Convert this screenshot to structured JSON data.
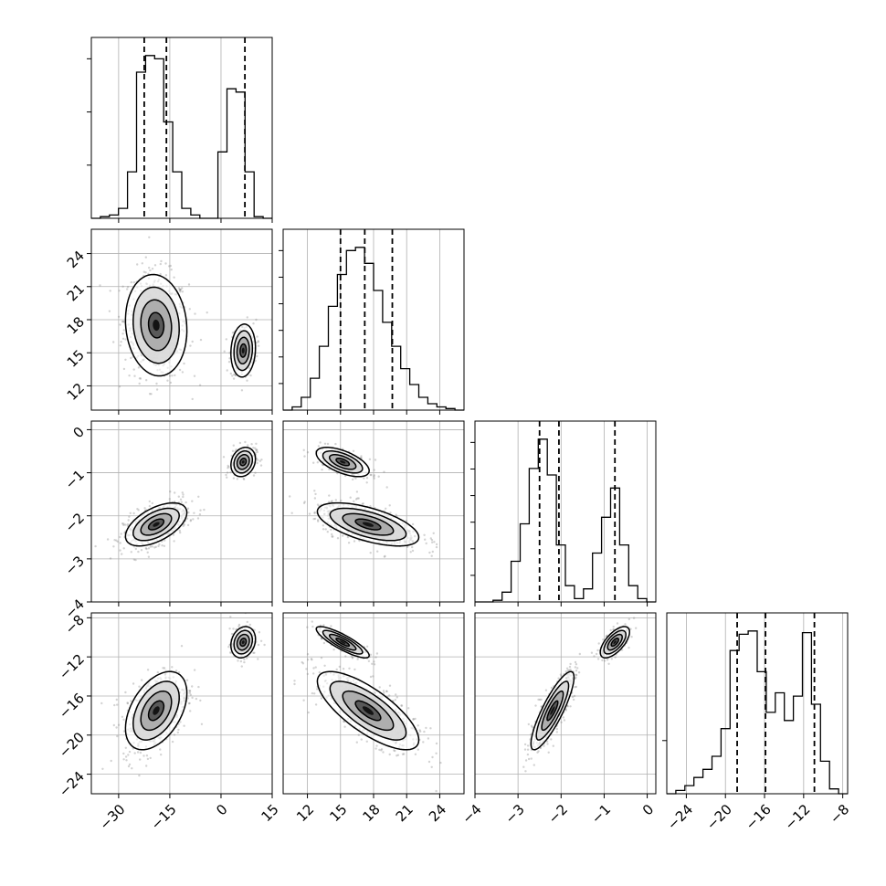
{
  "chart_data": {
    "type": "corner",
    "n_params": 4,
    "colors": {
      "line": "#000000",
      "grid": "#b0b0b0",
      "scatter": "#808080",
      "frame": "#000000"
    },
    "params": [
      {
        "range": [
          -38,
          15
        ],
        "ticks": [
          -30,
          -15,
          0,
          15
        ],
        "tick_labels": [
          "−30",
          "−15",
          "0",
          "15"
        ],
        "quantiles": [
          -22.5,
          -16.0,
          7.0
        ]
      },
      {
        "range": [
          9.8,
          26.2
        ],
        "ticks": [
          12,
          15,
          18,
          21,
          24
        ],
        "tick_labels": [
          "12",
          "15",
          "18",
          "21",
          "24"
        ],
        "quantiles": [
          15.0,
          17.2,
          19.7
        ]
      },
      {
        "range": [
          -4,
          0.2
        ],
        "ticks": [
          -4,
          -3,
          -2,
          -1,
          0
        ],
        "tick_labels": [
          "−4",
          "−3",
          "−2",
          "−1",
          "0"
        ],
        "quantiles": [
          -2.5,
          -2.05,
          -0.75
        ]
      },
      {
        "range": [
          -26,
          -7.5
        ],
        "ticks": [
          -24,
          -20,
          -16,
          -12,
          -8
        ],
        "tick_labels": [
          "−24",
          "−20",
          "−16",
          "−12",
          "−8"
        ],
        "quantiles": [
          -18.8,
          -15.9,
          -10.9
        ]
      }
    ],
    "histograms": [
      {
        "param": 0,
        "bin_edges_range": [
          -38,
          15
        ],
        "counts": [
          0,
          1,
          2,
          6,
          28,
          88,
          98,
          96,
          58,
          28,
          6,
          2,
          0,
          0,
          40,
          78,
          76,
          28,
          1,
          0
        ]
      },
      {
        "param": 1,
        "bin_edges_range": [
          9.8,
          26.2
        ],
        "counts": [
          0,
          2,
          8,
          20,
          40,
          65,
          85,
          100,
          102,
          92,
          75,
          55,
          40,
          26,
          16,
          8,
          4,
          2,
          1,
          0
        ]
      },
      {
        "param": 2,
        "bin_edges_range": [
          -4,
          0.2
        ],
        "counts": [
          0,
          0,
          1,
          6,
          25,
          48,
          82,
          100,
          78,
          35,
          10,
          2,
          8,
          30,
          52,
          70,
          35,
          10,
          2,
          0
        ]
      },
      {
        "param": 3,
        "bin_edges_range": [
          -26,
          -7.5
        ],
        "counts": [
          0,
          2,
          5,
          10,
          15,
          23,
          40,
          88,
          98,
          100,
          75,
          50,
          62,
          45,
          60,
          99,
          55,
          20,
          3,
          0
        ]
      }
    ],
    "modes": [
      {
        "weight": 0.7,
        "mean": [
          -19,
          17.5,
          -2.2,
          -17.5
        ],
        "std": [
          4.5,
          2.3,
          0.25,
          2.0
        ],
        "corr": {
          "0-1": -0.1,
          "0-2": 0.55,
          "0-3": 0.45,
          "1-2": -0.6,
          "1-3": -0.75,
          "2-3": 0.85
        }
      },
      {
        "weight": 0.3,
        "mean": [
          6.5,
          15.2,
          -0.75,
          -10.5
        ],
        "std": [
          1.8,
          1.2,
          0.17,
          0.8
        ],
        "corr": {
          "0-1": 0.1,
          "0-2": 0.2,
          "0-3": 0.2,
          "1-2": -0.6,
          "1-3": -0.85,
          "2-3": 0.65
        }
      }
    ]
  }
}
